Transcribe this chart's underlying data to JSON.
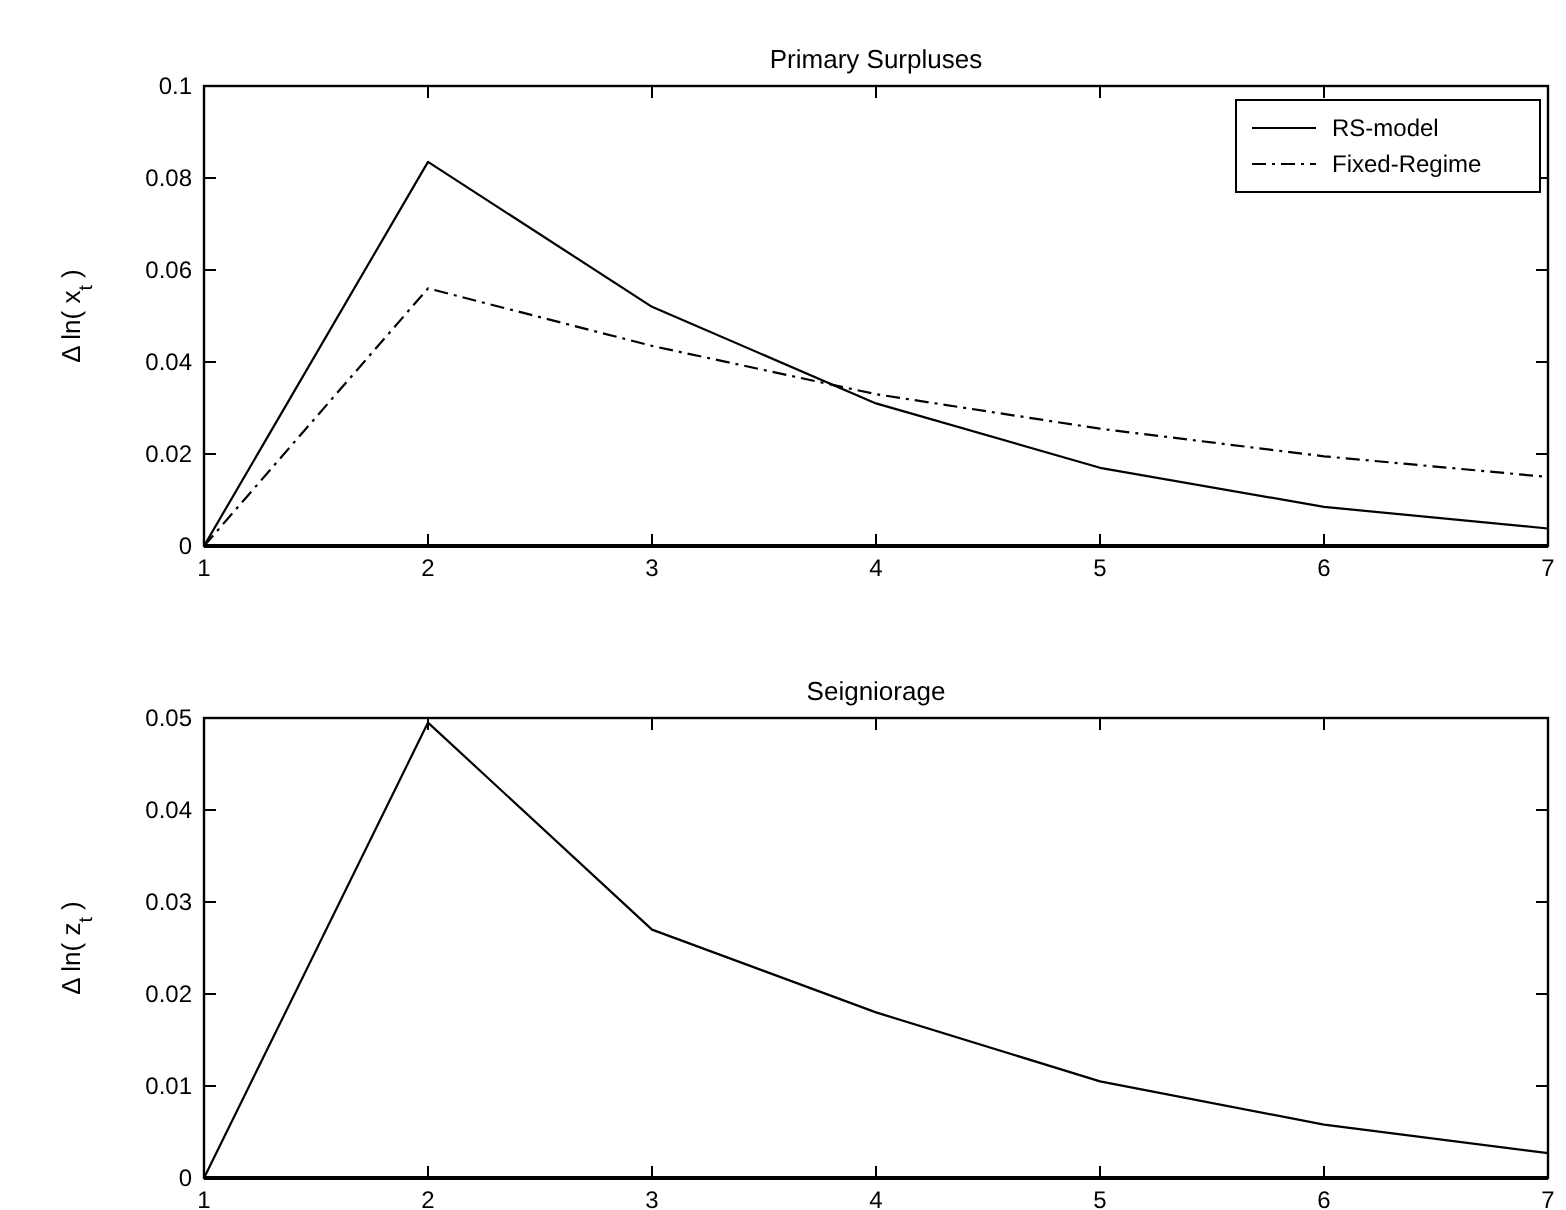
{
  "chart_data": [
    {
      "type": "line",
      "title": "Primary Surpluses",
      "ylabel": "Δ ln( x$_{t}$ )",
      "x": [
        1,
        2,
        3,
        4,
        5,
        6,
        7
      ],
      "xlim": [
        1,
        7
      ],
      "xticks": [
        1,
        2,
        3,
        4,
        5,
        6,
        7
      ],
      "ylim": [
        0,
        0.1
      ],
      "yticks": [
        0,
        0.02,
        0.04,
        0.06,
        0.08,
        0.1
      ],
      "grid": false,
      "legend": "top right",
      "series": [
        {
          "name": "RS-model",
          "color": "#000000",
          "line_style": "solid",
          "values": [
            0,
            0.0835,
            0.052,
            0.031,
            0.017,
            0.0085,
            0.0038
          ]
        },
        {
          "name": "Fixed-Regime",
          "color": "#000000",
          "line_style": "dashed",
          "values": [
            0,
            0.056,
            0.0435,
            0.033,
            0.0255,
            0.0195,
            0.015
          ]
        }
      ]
    },
    {
      "type": "line",
      "title": "Seigniorage",
      "ylabel": "Δ ln( z$_{t}$ )",
      "x": [
        1,
        2,
        3,
        4,
        5,
        6,
        7
      ],
      "xlim": [
        1,
        7
      ],
      "xticks": [
        1,
        2,
        3,
        4,
        5,
        6,
        7
      ],
      "ylim": [
        0,
        0.05
      ],
      "yticks": [
        0,
        0.01,
        0.02,
        0.03,
        0.04,
        0.05
      ],
      "grid": false,
      "series": [
        {
          "color": "#000000",
          "line_style": "solid",
          "values": [
            0,
            0.0495,
            0.027,
            0.018,
            0.0105,
            0.0058,
            0.0027
          ]
        }
      ]
    }
  ]
}
